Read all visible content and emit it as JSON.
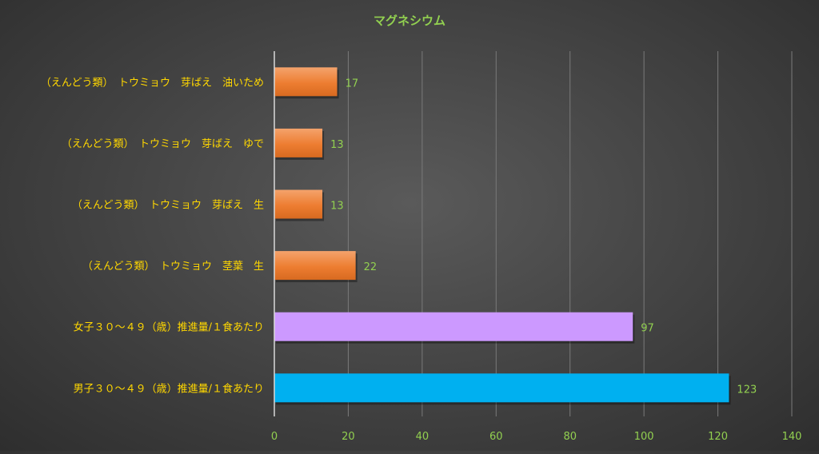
{
  "chart_data": {
    "type": "bar",
    "orientation": "horizontal",
    "title": "マグネシウム",
    "categories": [
      "（えんどう類）　トウミョウ　芽ばえ　油いため",
      "（えんどう類）　トウミョウ　芽ばえ　ゆで",
      "（えんどう類）　トウミョウ　芽ばえ　生",
      "（えんどう類）　トウミョウ　茎葉　生",
      "女子３０～４９（歳）推進量/１食あたり",
      "男子３０～４９（歳）推進量/１食あたり"
    ],
    "values": [
      17,
      13,
      13,
      22,
      97,
      123
    ],
    "value_labels": [
      "17",
      "13",
      "13",
      "22",
      "97",
      "123"
    ],
    "bar_colors": [
      "#ED7D31",
      "#ED7D31",
      "#ED7D31",
      "#ED7D31",
      "#CC99FF",
      "#00B0F0"
    ],
    "xlim": [
      0,
      140
    ],
    "x_ticks": [
      "0",
      "20",
      "40",
      "60",
      "80",
      "100",
      "120",
      "140"
    ],
    "grid": true,
    "legend": "none",
    "colors": {
      "title": "#92D050",
      "category_labels": "#FFD700",
      "tick_labels": "#92D050",
      "data_labels": "#92D050",
      "gridlines": "#7a7a7a",
      "axis_line": "#d9d9d9"
    }
  }
}
